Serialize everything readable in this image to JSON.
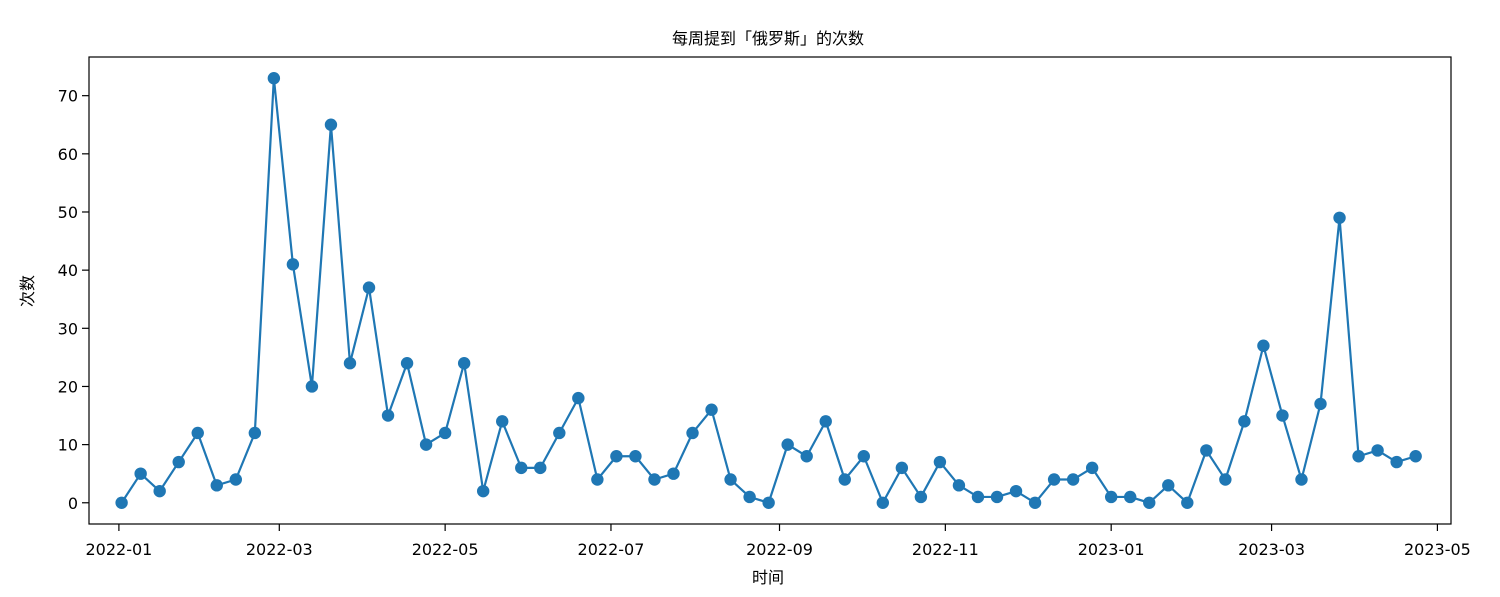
{
  "chart_data": {
    "type": "line",
    "title": "每周提到「俄罗斯」的次数",
    "xlabel": "时间",
    "ylabel": "次数",
    "marker": "circle",
    "color": "#1f77b4",
    "grid": false,
    "legend": "none",
    "x_range": [
      "2021-12-21",
      "2023-05-06"
    ],
    "ylim": [
      -3.65,
      76.65
    ],
    "x_ticks": [
      "2022-01",
      "2022-03",
      "2022-05",
      "2022-07",
      "2022-09",
      "2022-11",
      "2023-01",
      "2023-03",
      "2023-05"
    ],
    "y_ticks": [
      0,
      10,
      20,
      30,
      40,
      50,
      60,
      70
    ],
    "x": [
      "2022-01-02",
      "2022-01-09",
      "2022-01-16",
      "2022-01-23",
      "2022-01-30",
      "2022-02-06",
      "2022-02-13",
      "2022-02-20",
      "2022-02-27",
      "2022-03-06",
      "2022-03-13",
      "2022-03-20",
      "2022-03-27",
      "2022-04-03",
      "2022-04-10",
      "2022-04-17",
      "2022-04-24",
      "2022-05-01",
      "2022-05-08",
      "2022-05-15",
      "2022-05-22",
      "2022-05-29",
      "2022-06-05",
      "2022-06-12",
      "2022-06-19",
      "2022-06-26",
      "2022-07-03",
      "2022-07-10",
      "2022-07-17",
      "2022-07-24",
      "2022-07-31",
      "2022-08-07",
      "2022-08-14",
      "2022-08-21",
      "2022-08-28",
      "2022-09-04",
      "2022-09-11",
      "2022-09-18",
      "2022-09-25",
      "2022-10-02",
      "2022-10-09",
      "2022-10-16",
      "2022-10-23",
      "2022-10-30",
      "2022-11-06",
      "2022-11-13",
      "2022-11-20",
      "2022-11-27",
      "2022-12-04",
      "2022-12-11",
      "2022-12-18",
      "2022-12-25",
      "2023-01-01",
      "2023-01-08",
      "2023-01-15",
      "2023-01-22",
      "2023-01-29",
      "2023-02-05",
      "2023-02-12",
      "2023-02-19",
      "2023-02-26",
      "2023-03-05",
      "2023-03-12",
      "2023-03-19",
      "2023-03-26",
      "2023-04-02",
      "2023-04-09",
      "2023-04-16",
      "2023-04-23"
    ],
    "series": [
      {
        "values": [
          0,
          5,
          2,
          7,
          12,
          3,
          4,
          12,
          73,
          41,
          20,
          65,
          24,
          37,
          15,
          24,
          10,
          12,
          24,
          2,
          14,
          6,
          6,
          12,
          18,
          4,
          8,
          8,
          4,
          5,
          12,
          16,
          4,
          1,
          0,
          10,
          8,
          14,
          4,
          8,
          0,
          6,
          1,
          7,
          3,
          1,
          1,
          2,
          0,
          4,
          4,
          6,
          1,
          1,
          0,
          3,
          0,
          9,
          4,
          14,
          27,
          15,
          4,
          17,
          49,
          8,
          9,
          7,
          8
        ]
      }
    ]
  }
}
